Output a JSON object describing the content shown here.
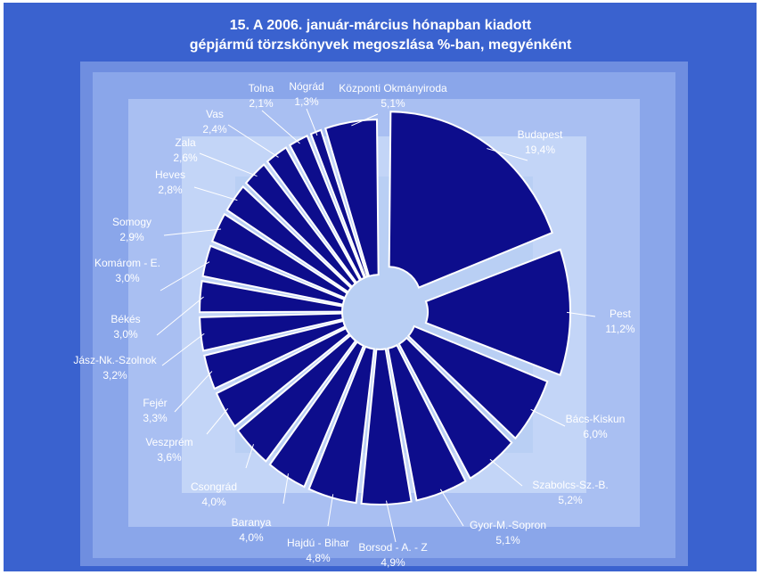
{
  "title_line1": "15. A  2006. január-március hónapban kiadott",
  "title_line2": "gépjármű törzskönyvek megoszlása %-ban, megyénként",
  "colors": {
    "frame": "#3a62cf",
    "slice": "#0d0d8c",
    "slice_edge": "#ffffff",
    "label": "#ffffff"
  },
  "chart_data": {
    "type": "pie",
    "exploded": true,
    "series": [
      {
        "values": [
          19.4,
          11.2,
          6.0,
          5.2,
          5.1,
          4.9,
          4.8,
          4.0,
          4.0,
          3.6,
          3.3,
          3.2,
          3.0,
          3.0,
          2.9,
          2.8,
          2.6,
          2.4,
          2.1,
          1.3,
          5.1
        ]
      }
    ],
    "categories": [
      "Budapest",
      "Pest",
      "Bács-Kiskun",
      "Szabolcs-Sz.-B.",
      "Gyor-M.-Sopron",
      "Borsod - A. - Z",
      "Hajdú - Bihar",
      "Baranya",
      "Csongrád",
      "Veszprém",
      "Fejér",
      "Jász-Nk.-Szolnok",
      "Békés",
      "Komárom -  E.",
      "Somogy",
      "Heves",
      "Zala",
      "Vas",
      "Tolna",
      "Nógrád",
      "Központi Okmányiroda"
    ],
    "value_labels": [
      "19,4%",
      "11,2%",
      "6,0%",
      "5,2%",
      "5,1%",
      "4,9%",
      "4,8%",
      "4,0%",
      "4,0%",
      "3,6%",
      "3,3%",
      "3,2%",
      "3,0%",
      "3,0%",
      "2,9%",
      "2,8%",
      "2,6%",
      "2,4%",
      "2,1%",
      "1,3%",
      "5,1%"
    ]
  }
}
